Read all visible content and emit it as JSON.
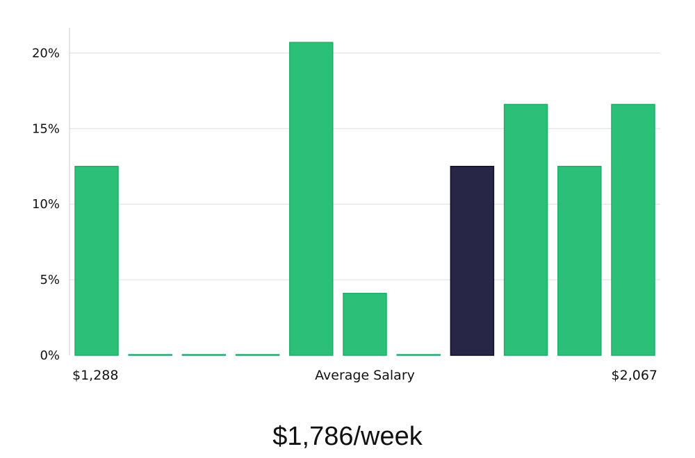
{
  "chart_data": {
    "type": "bar",
    "title": "",
    "xlabel": "Average Salary",
    "ylabel": "",
    "ylim": [
      0,
      22
    ],
    "yticks": [
      0,
      5,
      10,
      15,
      20
    ],
    "ytick_labels": [
      "0%",
      "5%",
      "10%",
      "15%",
      "20%"
    ],
    "x_min_label": "$1,288",
    "x_max_label": "$2,067",
    "values": [
      12.5,
      0,
      0,
      0,
      20.7,
      4.1,
      0,
      12.5,
      16.6,
      12.5,
      16.6
    ],
    "highlight_index": 7,
    "grid": true,
    "legend": "none"
  },
  "colors": {
    "bar": "#2bbf78",
    "bar_stroke": "#1fae69",
    "highlight": "#282646",
    "highlight_stroke": "#0f0e24",
    "grid": "#dddddd",
    "axis": "#cccccc"
  },
  "headline": "$1,786/week"
}
